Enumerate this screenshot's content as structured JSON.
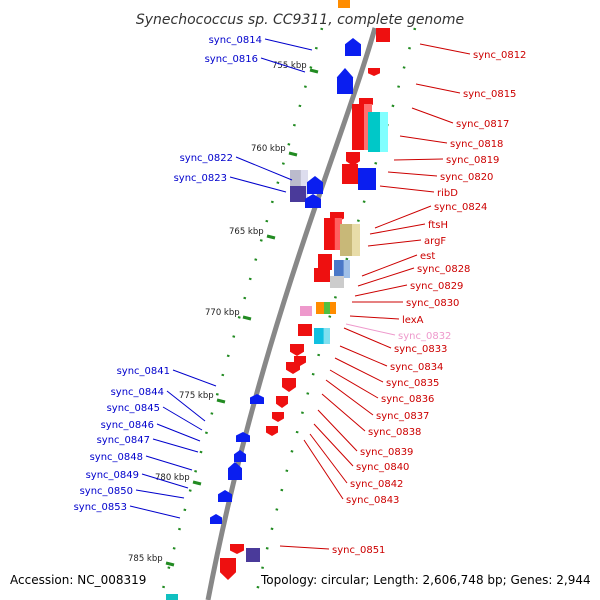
{
  "title": "Synechococcus sp. CC9311, complete genome",
  "accession": "Accession: NC_008319",
  "topology": "Topology: circular; Length: 2,606,748 bp; Genes: 2,944",
  "colors": {
    "forward_label": "#0000cc",
    "reverse_label": "#cc0000",
    "highlight_label": "#ee99cc",
    "forward_cds": "#0a1ef0",
    "reverse_cds": "#ee1010",
    "backbone": "#888888",
    "tick": "#228b22"
  },
  "tick_labels": [
    "755 kbp",
    "760 kbp",
    "765 kbp",
    "770 kbp",
    "775 kbp",
    "780 kbp",
    "785 kbp"
  ],
  "left_labels": [
    "sync_0814",
    "sync_0816",
    "sync_0822",
    "sync_0823",
    "sync_0841",
    "sync_0844",
    "sync_0845",
    "sync_0846",
    "sync_0847",
    "sync_0848",
    "sync_0849",
    "sync_0850",
    "sync_0853"
  ],
  "right_labels": [
    "sync_0812",
    "sync_0815",
    "sync_0817",
    "sync_0818",
    "sync_0819",
    "sync_0820",
    "ribD",
    "sync_0824",
    "ftsH",
    "argF",
    "est",
    "sync_0828",
    "sync_0829",
    "sync_0830",
    "lexA",
    "sync_0832",
    "sync_0833",
    "sync_0834",
    "sync_0835",
    "sync_0836",
    "sync_0837",
    "sync_0838",
    "sync_0839",
    "sync_0840",
    "sync_0842",
    "sync_0843",
    "sync_0851"
  ]
}
